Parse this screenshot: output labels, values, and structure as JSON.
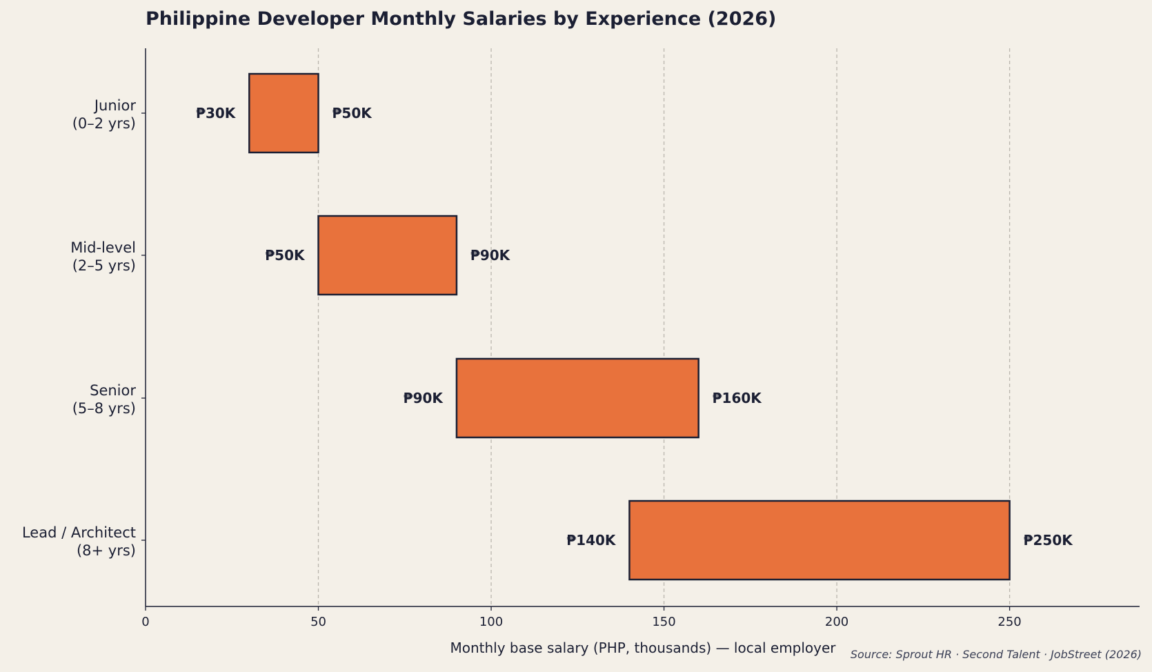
{
  "chart_data": {
    "type": "bar",
    "orientation": "horizontal",
    "subtype": "floating-range",
    "title": "Philippine Developer Monthly Salaries by Experience (2026)",
    "xlabel": "Monthly base salary (PHP, thousands) — local employer",
    "ylabel": "",
    "xlim": [
      0,
      290
    ],
    "xticks": [
      0,
      50,
      100,
      150,
      200,
      250
    ],
    "grid": "vertical-dashed",
    "categories": [
      {
        "lines": [
          "Junior",
          "(0–2 yrs)"
        ],
        "min": 30,
        "max": 50,
        "min_label": "₱30K",
        "max_label": "₱50K"
      },
      {
        "lines": [
          "Mid-level",
          "(2–5 yrs)"
        ],
        "min": 50,
        "max": 90,
        "min_label": "₱50K",
        "max_label": "₱90K"
      },
      {
        "lines": [
          "Senior",
          "(5–8 yrs)"
        ],
        "min": 90,
        "max": 160,
        "min_label": "₱90K",
        "max_label": "₱160K"
      },
      {
        "lines": [
          "Lead / Architect",
          "(8+ yrs)"
        ],
        "min": 140,
        "max": 250,
        "min_label": "₱140K",
        "max_label": "₱250K"
      }
    ],
    "source": "Source: Sprout HR · Second Talent · JobStreet (2026)",
    "colors": {
      "bar_fill": "#e8723c",
      "bar_stroke": "#1b1f33",
      "text": "#1b1f33",
      "grid": "#b9b5ad",
      "background": "#f4f0e8"
    }
  }
}
